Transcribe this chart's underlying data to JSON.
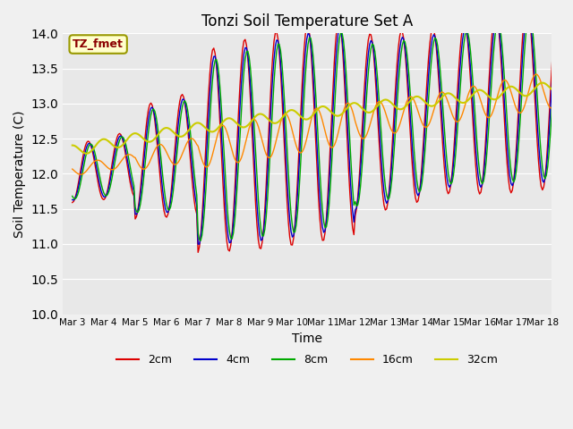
{
  "title": "Tonzi Soil Temperature Set A",
  "xlabel": "Time",
  "ylabel": "Soil Temperature (C)",
  "ylim": [
    10.0,
    14.0
  ],
  "yticks": [
    10.0,
    10.5,
    11.0,
    11.5,
    12.0,
    12.5,
    13.0,
    13.5,
    14.0
  ],
  "xtick_labels": [
    "Mar 3",
    "Mar 4",
    "Mar 5",
    "Mar 6",
    "Mar 7",
    "Mar 8",
    "Mar 9",
    "Mar 10",
    "Mar 11",
    "Mar 12",
    "Mar 13",
    "Mar 14",
    "Mar 15",
    "Mar 16",
    "Mar 17",
    "Mar 18"
  ],
  "colors": {
    "2cm": "#dd0000",
    "4cm": "#0000cc",
    "8cm": "#00aa00",
    "16cm": "#ff8800",
    "32cm": "#cccc00"
  },
  "legend_label": "TZ_fmet",
  "background_color": "#e8e8e8"
}
